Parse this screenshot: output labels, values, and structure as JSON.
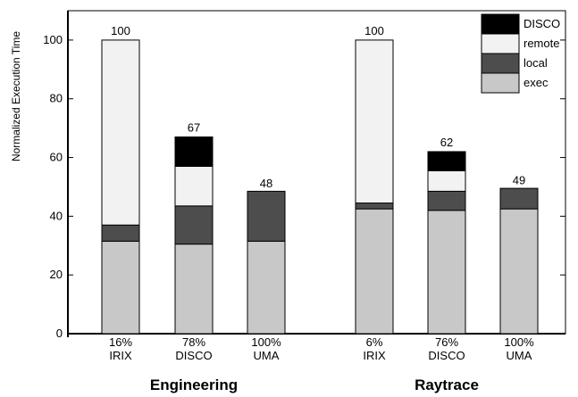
{
  "chart_data": {
    "type": "bar",
    "stacked": true,
    "ylabel": "Normalized Execution Time",
    "ylim": [
      0,
      110
    ],
    "yticks": [
      0,
      20,
      40,
      60,
      80,
      100
    ],
    "grid": false,
    "legend_position": "top-right",
    "groups": [
      "Engineering",
      "Raytrace"
    ],
    "categories": [
      {
        "group": "Engineering",
        "line1": "16%",
        "line2": "IRIX"
      },
      {
        "group": "Engineering",
        "line1": "78%",
        "line2": "DISCO"
      },
      {
        "group": "Engineering",
        "line1": "100%",
        "line2": "UMA"
      },
      {
        "group": "Raytrace",
        "line1": "6%",
        "line2": "IRIX"
      },
      {
        "group": "Raytrace",
        "line1": "76%",
        "line2": "DISCO"
      },
      {
        "group": "Raytrace",
        "line1": "100%",
        "line2": "UMA"
      }
    ],
    "series": [
      {
        "name": "exec",
        "color": "#c8c8c8",
        "values": [
          31.5,
          30.5,
          31.5,
          42.5,
          42,
          42.5
        ]
      },
      {
        "name": "local",
        "color": "#4d4d4d",
        "values": [
          5.5,
          13,
          17,
          2,
          6.5,
          7
        ]
      },
      {
        "name": "remote",
        "color": "#f2f2f2",
        "values": [
          63,
          13.5,
          0,
          55.5,
          7,
          0
        ]
      },
      {
        "name": "DISCO",
        "color": "#000000",
        "values": [
          0,
          10,
          0,
          0,
          6.5,
          0
        ]
      }
    ],
    "totals": [
      100,
      67,
      48,
      100,
      62,
      49
    ],
    "legend_order": [
      "DISCO",
      "remote",
      "local",
      "exec"
    ]
  }
}
